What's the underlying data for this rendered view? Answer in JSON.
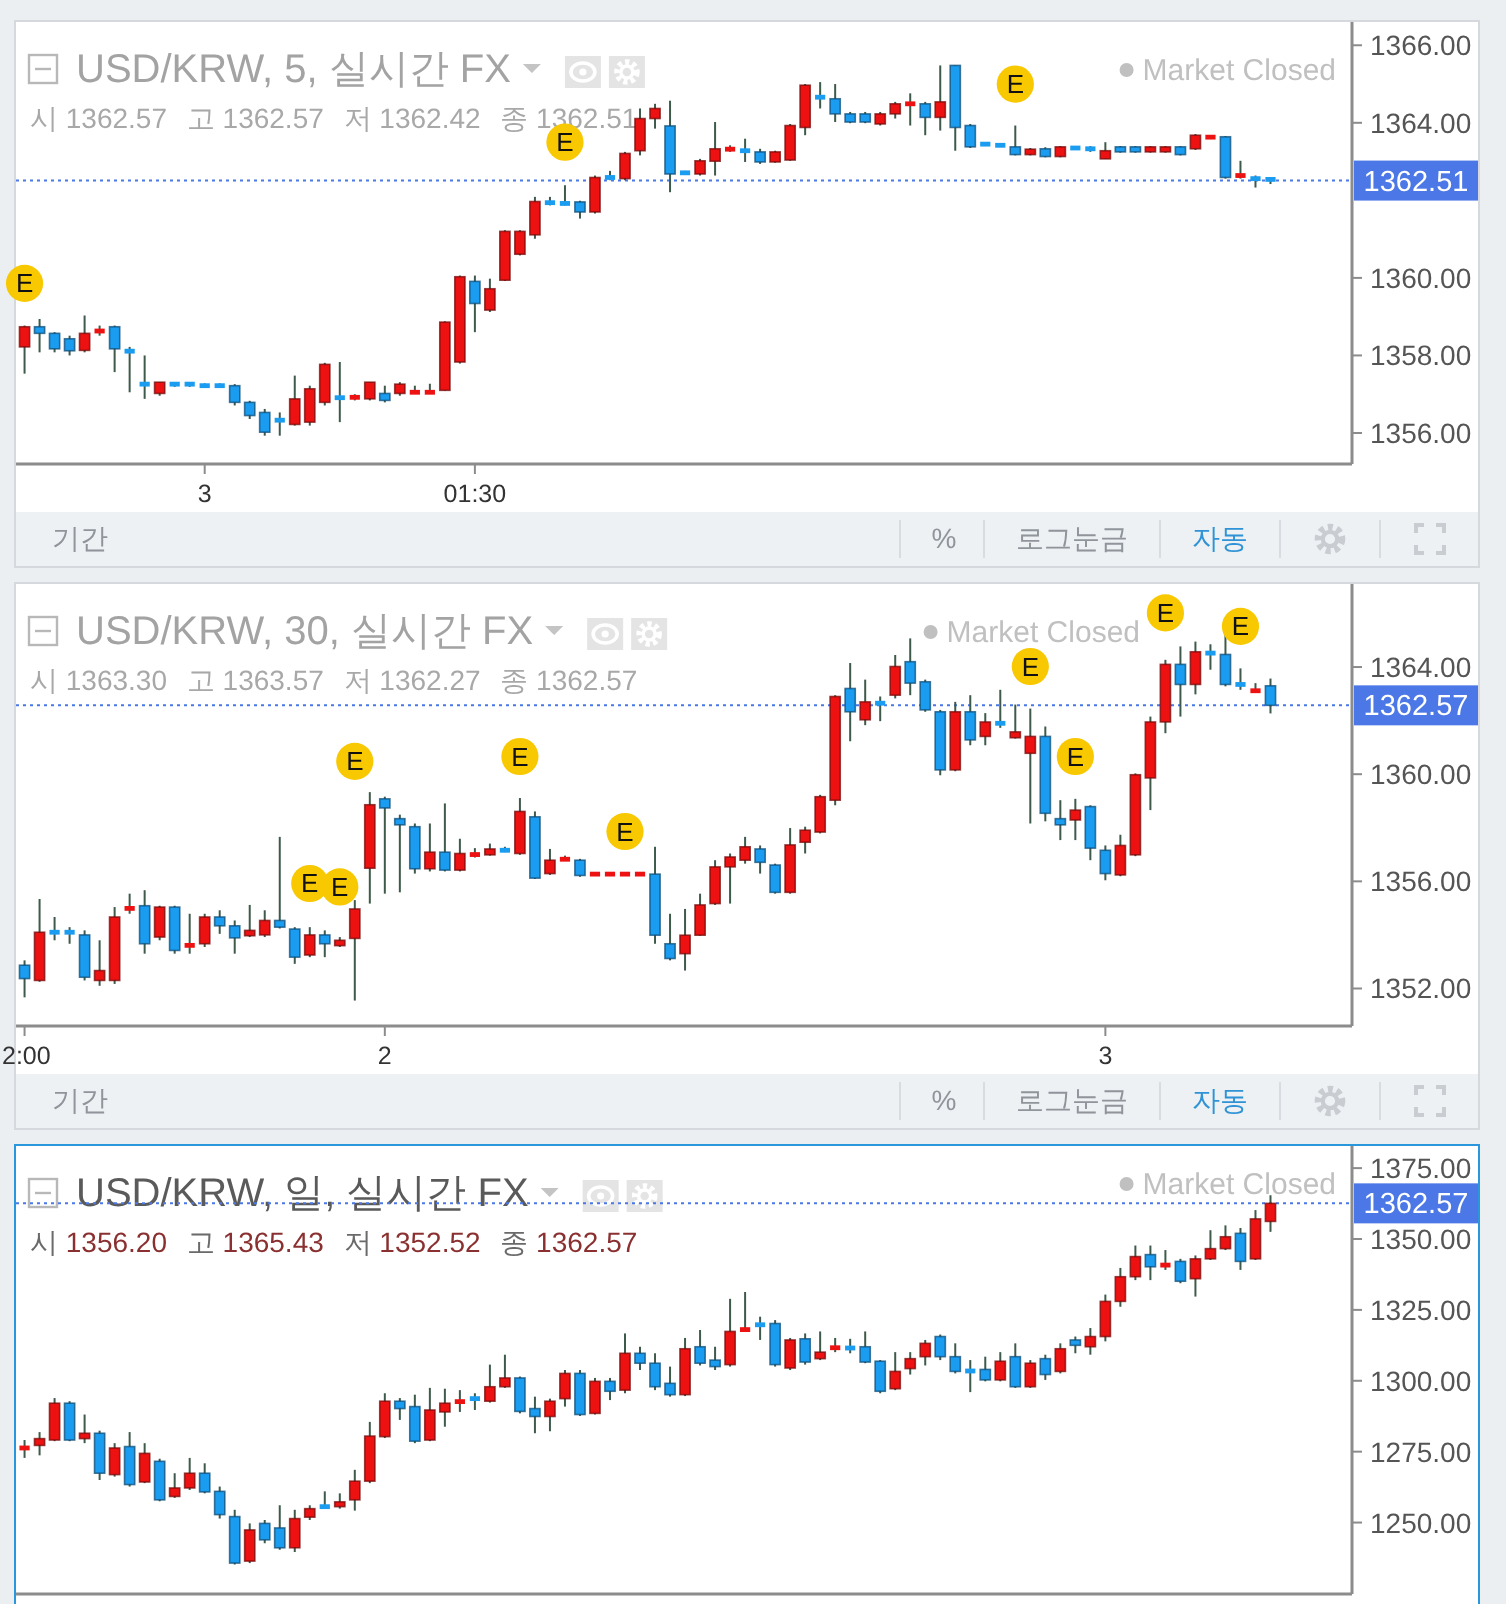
{
  "chart_data": [
    {
      "type": "candlestick",
      "title": "USD/KRW, 5, 실시간 FX",
      "subtitle": "시 1362.57 고 1362.57 저 1362.42 종 1362.51",
      "annotations": [
        "Market Closed",
        "기간",
        "%",
        "로그눈금",
        "자동"
      ],
      "categories": [
        null,
        null,
        null,
        null,
        null,
        null,
        null,
        null,
        null,
        null,
        null,
        null,
        "3",
        null,
        null,
        null,
        null,
        null,
        null,
        null,
        null,
        null,
        null,
        null,
        null,
        null,
        null,
        null,
        null,
        null,
        "01:30",
        null,
        null,
        null,
        null,
        null,
        null,
        null,
        null,
        null,
        null,
        null,
        null,
        null,
        null,
        null,
        null,
        null,
        null,
        null,
        null,
        null,
        null,
        null,
        null,
        null,
        null,
        null,
        null,
        null,
        null,
        null,
        null,
        null,
        null,
        null,
        null,
        null,
        null,
        null,
        null,
        null,
        null,
        null,
        null,
        null,
        null,
        null,
        null,
        null,
        null,
        null,
        null,
        null
      ],
      "ohlc": [
        [
          1358.22,
          1358.77,
          1357.53,
          1358.74
        ],
        [
          1358.74,
          1358.94,
          1358.08,
          1358.57
        ],
        [
          1358.57,
          1358.6,
          1358.08,
          1358.17
        ],
        [
          1358.43,
          1358.51,
          1358.0,
          1358.12
        ],
        [
          1358.13,
          1359.03,
          1358.08,
          1358.57
        ],
        [
          1358.57,
          1358.77,
          1358.51,
          1358.69
        ],
        [
          1358.74,
          1358.77,
          1357.57,
          1358.17
        ],
        [
          1358.17,
          1358.22,
          1357.05,
          1358.05
        ],
        [
          1357.26,
          1358.0,
          1356.88,
          1357.26
        ],
        [
          1357.02,
          1357.31,
          1356.96,
          1357.31
        ],
        [
          1357.26,
          1357.31,
          1357.19,
          1357.26
        ],
        [
          1357.26,
          1357.31,
          1357.19,
          1357.26
        ],
        [
          1357.22,
          1357.28,
          1357.17,
          1357.22
        ],
        [
          1357.22,
          1357.28,
          1357.17,
          1357.22
        ],
        [
          1357.22,
          1357.26,
          1356.71,
          1356.79
        ],
        [
          1356.79,
          1356.83,
          1356.36,
          1356.45
        ],
        [
          1356.53,
          1356.62,
          1355.93,
          1356.02
        ],
        [
          1356.33,
          1356.53,
          1355.93,
          1356.33
        ],
        [
          1356.22,
          1357.48,
          1356.19,
          1356.88
        ],
        [
          1356.28,
          1357.22,
          1356.19,
          1357.14
        ],
        [
          1356.79,
          1357.81,
          1356.71,
          1357.77
        ],
        [
          1356.91,
          1357.83,
          1356.28,
          1356.91
        ],
        [
          1356.88,
          1357.0,
          1356.84,
          1356.96
        ],
        [
          1356.88,
          1357.31,
          1356.84,
          1357.31
        ],
        [
          1357.02,
          1357.22,
          1356.79,
          1356.84
        ],
        [
          1357.02,
          1357.31,
          1356.96,
          1357.26
        ],
        [
          1357.05,
          1357.22,
          1357.02,
          1357.05
        ],
        [
          1357.05,
          1357.27,
          1357.02,
          1357.05
        ],
        [
          1357.1,
          1358.88,
          1357.09,
          1358.86
        ],
        [
          1357.83,
          1360.06,
          1357.79,
          1360.03
        ],
        [
          1359.91,
          1360.06,
          1358.6,
          1359.34
        ],
        [
          1359.17,
          1359.98,
          1359.12,
          1359.72
        ],
        [
          1359.94,
          1361.23,
          1359.92,
          1361.2
        ],
        [
          1360.61,
          1361.23,
          1360.58,
          1361.2
        ],
        [
          1361.11,
          1362.09,
          1361.01,
          1361.97
        ],
        [
          1361.94,
          1362.09,
          1361.87,
          1361.94
        ],
        [
          1361.92,
          1362.39,
          1361.87,
          1361.92
        ],
        [
          1361.96,
          1361.99,
          1361.53,
          1361.7
        ],
        [
          1361.7,
          1362.64,
          1361.66,
          1362.59
        ],
        [
          1362.59,
          1362.76,
          1362.52,
          1362.59
        ],
        [
          1362.56,
          1363.25,
          1362.52,
          1363.21
        ],
        [
          1363.28,
          1364.37,
          1363.16,
          1364.11
        ],
        [
          1364.11,
          1364.49,
          1363.85,
          1364.37
        ],
        [
          1363.92,
          1364.57,
          1362.21,
          1362.68
        ],
        [
          1362.71,
          1362.76,
          1362.68,
          1362.71
        ],
        [
          1362.68,
          1363.07,
          1362.64,
          1363.02
        ],
        [
          1363.01,
          1364.02,
          1362.64,
          1363.33
        ],
        [
          1363.32,
          1363.42,
          1363.25,
          1363.32
        ],
        [
          1363.28,
          1363.59,
          1362.99,
          1363.28
        ],
        [
          1363.25,
          1363.33,
          1362.94,
          1362.99
        ],
        [
          1362.99,
          1363.28,
          1362.97,
          1363.25
        ],
        [
          1363.04,
          1363.97,
          1363.02,
          1363.93
        ],
        [
          1363.88,
          1365.0,
          1363.68,
          1364.97
        ],
        [
          1364.66,
          1365.05,
          1364.37,
          1364.66
        ],
        [
          1364.62,
          1365.0,
          1364.02,
          1364.23
        ],
        [
          1364.23,
          1364.28,
          1363.99,
          1364.02
        ],
        [
          1364.23,
          1364.28,
          1363.99,
          1364.02
        ],
        [
          1363.97,
          1364.28,
          1363.93,
          1364.23
        ],
        [
          1364.23,
          1364.54,
          1364.11,
          1364.49
        ],
        [
          1364.49,
          1364.76,
          1363.93,
          1364.49
        ],
        [
          1364.49,
          1364.54,
          1363.68,
          1364.14
        ],
        [
          1364.14,
          1365.48,
          1363.8,
          1364.54
        ],
        [
          1365.48,
          1365.48,
          1363.28,
          1363.88
        ],
        [
          1363.93,
          1363.97,
          1363.35,
          1363.38
        ],
        [
          1363.45,
          1363.5,
          1363.4,
          1363.45
        ],
        [
          1363.42,
          1363.47,
          1363.38,
          1363.42
        ],
        [
          1363.38,
          1363.93,
          1363.16,
          1363.18
        ],
        [
          1363.18,
          1363.35,
          1363.16,
          1363.32
        ],
        [
          1363.33,
          1363.37,
          1363.11,
          1363.13
        ],
        [
          1363.13,
          1363.4,
          1363.11,
          1363.38
        ],
        [
          1363.35,
          1363.38,
          1363.32,
          1363.35
        ],
        [
          1363.38,
          1363.4,
          1363.25,
          1363.28
        ],
        [
          1363.07,
          1363.5,
          1363.07,
          1363.28
        ],
        [
          1363.38,
          1363.4,
          1363.23,
          1363.25
        ],
        [
          1363.38,
          1363.4,
          1363.23,
          1363.25
        ],
        [
          1363.25,
          1363.4,
          1363.23,
          1363.38
        ],
        [
          1363.25,
          1363.4,
          1363.23,
          1363.38
        ],
        [
          1363.38,
          1363.4,
          1363.16,
          1363.18
        ],
        [
          1363.33,
          1363.71,
          1363.3,
          1363.68
        ],
        [
          1363.63,
          1363.66,
          1363.6,
          1363.63
        ],
        [
          1363.64,
          1363.66,
          1362.56,
          1362.59
        ],
        [
          1362.64,
          1363.02,
          1362.56,
          1362.64
        ],
        [
          1362.61,
          1362.64,
          1362.33,
          1362.51
        ],
        [
          1362.57,
          1362.57,
          1362.42,
          1362.51
        ]
      ],
      "colors": [
        "#ee1111",
        "#1a9cf0",
        "#1a9cf0",
        "#1a9cf0",
        "#ee1111",
        "#ee1111",
        "#1a9cf0",
        "#1a9cf0",
        "#1a9cf0",
        "#ee1111",
        "#1a9cf0",
        "#1a9cf0",
        "#1a9cf0",
        "#1a9cf0",
        "#1a9cf0",
        "#1a9cf0",
        "#1a9cf0",
        "#1a9cf0",
        "#ee1111",
        "#ee1111",
        "#ee1111",
        "#1a9cf0",
        "#ee1111",
        "#ee1111",
        "#1a9cf0",
        "#ee1111",
        "#ee1111",
        "#ee1111",
        "#ee1111",
        "#ee1111",
        "#1a9cf0",
        "#ee1111",
        "#ee1111",
        "#ee1111",
        "#ee1111",
        "#1a9cf0",
        "#1a9cf0",
        "#1a9cf0",
        "#ee1111",
        "#1a9cf0",
        "#ee1111",
        "#ee1111",
        "#ee1111",
        "#1a9cf0",
        "#1a9cf0",
        "#ee1111",
        "#ee1111",
        "#ee1111",
        "#1a9cf0",
        "#1a9cf0",
        "#ee1111",
        "#ee1111",
        "#ee1111",
        "#1a9cf0",
        "#1a9cf0",
        "#1a9cf0",
        "#1a9cf0",
        "#ee1111",
        "#ee1111",
        "#ee1111",
        "#1a9cf0",
        "#ee1111",
        "#1a9cf0",
        "#1a9cf0",
        "#1a9cf0",
        "#1a9cf0",
        "#1a9cf0",
        "#ee1111",
        "#1a9cf0",
        "#ee1111",
        "#1a9cf0",
        "#1a9cf0",
        "#ee1111",
        "#1a9cf0",
        "#1a9cf0",
        "#ee1111",
        "#ee1111",
        "#1a9cf0",
        "#ee1111",
        "#ee1111",
        "#1a9cf0",
        "#ee1111",
        "#1a9cf0",
        "#1a9cf0"
      ],
      "series": [
        {
          "type": "scatter",
          "name": "E",
          "color": "#f8c800",
          "marker": "circle",
          "values": [
            1359.86,
            null,
            null,
            null,
            null,
            null,
            null,
            null,
            null,
            null,
            null,
            null,
            null,
            null,
            null,
            null,
            null,
            null,
            null,
            null,
            null,
            null,
            null,
            null,
            null,
            null,
            null,
            null,
            null,
            null,
            null,
            null,
            null,
            null,
            null,
            null,
            1363.5,
            null,
            null,
            null,
            null,
            null,
            null,
            null,
            null,
            null,
            null,
            null,
            null,
            null,
            null,
            null,
            null,
            null,
            null,
            null,
            null,
            null,
            null,
            null,
            null,
            null,
            null,
            null,
            null,
            null,
            1365.0,
            null,
            null,
            null,
            null,
            null,
            null,
            null,
            null,
            null,
            null,
            null,
            null,
            null,
            null,
            null,
            null,
            null
          ]
        }
      ],
      "ylim": [
        1355.2,
        1366.6
      ],
      "yticks": [
        {
          "value": 1356,
          "label": "1356.00"
        },
        {
          "value": 1358,
          "label": "1358.00"
        },
        {
          "value": 1360,
          "label": "1360.00"
        },
        {
          "value": 1364,
          "label": "1364.00"
        },
        {
          "value": 1366,
          "label": "1366.00"
        }
      ],
      "ref_lines": [
        {
          "axis": "y",
          "value": 1362.51,
          "label": "1362.51",
          "color": "#4b78e6",
          "line_style": "dotted"
        }
      ]
    },
    {
      "type": "candlestick",
      "title": "USD/KRW, 30, 실시간 FX",
      "subtitle": "시 1363.30 고 1363.57 저 1362.27 종 1362.57",
      "annotations": [
        "Market Closed",
        "기간",
        "%",
        "로그눈금",
        "자동"
      ],
      "categories": [
        "2:00",
        null,
        null,
        null,
        null,
        null,
        null,
        null,
        null,
        null,
        null,
        null,
        null,
        null,
        null,
        null,
        null,
        null,
        null,
        null,
        null,
        null,
        null,
        null,
        "2",
        null,
        null,
        null,
        null,
        null,
        null,
        null,
        null,
        null,
        null,
        null,
        null,
        null,
        null,
        null,
        null,
        null,
        null,
        null,
        null,
        null,
        null,
        null,
        null,
        null,
        null,
        null,
        null,
        null,
        null,
        null,
        null,
        null,
        null,
        null,
        null,
        null,
        null,
        null,
        null,
        null,
        null,
        null,
        null,
        null,
        null,
        null,
        "3",
        null,
        null,
        null,
        null,
        null,
        null,
        null,
        null,
        null,
        null,
        null
      ],
      "ohlc": [
        [
          1352.87,
          1353.05,
          1351.67,
          1352.37
        ],
        [
          1352.3,
          1355.34,
          1352.25,
          1354.1
        ],
        [
          1354.1,
          1354.67,
          1353.8,
          1354.1
        ],
        [
          1354.1,
          1354.29,
          1353.67,
          1354.1
        ],
        [
          1354.0,
          1354.17,
          1352.3,
          1352.42
        ],
        [
          1352.3,
          1353.8,
          1352.1,
          1352.67
        ],
        [
          1352.3,
          1355.04,
          1352.17,
          1354.67
        ],
        [
          1354.94,
          1355.54,
          1354.79,
          1355.04
        ],
        [
          1355.09,
          1355.67,
          1353.3,
          1353.67
        ],
        [
          1353.92,
          1355.09,
          1353.8,
          1355.04
        ],
        [
          1355.04,
          1355.09,
          1353.3,
          1353.42
        ],
        [
          1353.55,
          1354.79,
          1353.3,
          1353.67
        ],
        [
          1353.67,
          1354.79,
          1353.55,
          1354.67
        ],
        [
          1354.67,
          1354.92,
          1354.04,
          1354.34
        ],
        [
          1354.34,
          1354.54,
          1353.3,
          1353.89
        ],
        [
          1353.97,
          1355.12,
          1353.92,
          1354.17
        ],
        [
          1354.0,
          1354.92,
          1353.92,
          1354.54
        ],
        [
          1354.54,
          1357.66,
          1354.24,
          1354.29
        ],
        [
          1354.22,
          1354.29,
          1352.92,
          1353.17
        ],
        [
          1353.25,
          1354.29,
          1353.17,
          1354.0
        ],
        [
          1354.0,
          1354.17,
          1353.17,
          1353.67
        ],
        [
          1353.6,
          1353.92,
          1353.55,
          1353.8
        ],
        [
          1353.87,
          1355.3,
          1351.55,
          1354.97
        ],
        [
          1356.49,
          1359.33,
          1355.17,
          1358.86
        ],
        [
          1359.08,
          1359.16,
          1355.54,
          1358.74
        ],
        [
          1358.34,
          1358.49,
          1355.59,
          1358.11
        ],
        [
          1358.04,
          1358.16,
          1356.29,
          1356.47
        ],
        [
          1356.47,
          1358.16,
          1356.37,
          1357.09
        ],
        [
          1357.09,
          1358.91,
          1356.37,
          1356.42
        ],
        [
          1356.42,
          1357.59,
          1356.37,
          1357.04
        ],
        [
          1356.96,
          1357.24,
          1356.89,
          1357.04
        ],
        [
          1356.99,
          1357.41,
          1356.96,
          1357.21
        ],
        [
          1357.16,
          1357.29,
          1357.09,
          1357.16
        ],
        [
          1357.04,
          1359.11,
          1356.99,
          1358.61
        ],
        [
          1358.41,
          1358.61,
          1356.09,
          1356.12
        ],
        [
          1356.29,
          1357.21,
          1356.24,
          1356.79
        ],
        [
          1356.79,
          1356.96,
          1356.76,
          1356.86
        ],
        [
          1356.79,
          1356.84,
          1356.17,
          1356.22
        ],
        [
          1356.27,
          1356.27,
          1356.27,
          1356.27
        ],
        [
          1356.27,
          1356.27,
          1356.27,
          1356.27
        ],
        [
          1356.27,
          1356.27,
          1356.27,
          1356.27
        ],
        [
          1356.27,
          1356.27,
          1356.27,
          1356.27
        ],
        [
          1356.27,
          1357.29,
          1353.67,
          1353.99
        ],
        [
          1353.67,
          1354.79,
          1353.05,
          1353.12
        ],
        [
          1353.3,
          1354.97,
          1352.67,
          1353.99
        ],
        [
          1353.99,
          1355.54,
          1353.97,
          1355.12
        ],
        [
          1355.17,
          1356.79,
          1355.12,
          1356.54
        ],
        [
          1356.54,
          1357.04,
          1355.17,
          1356.91
        ],
        [
          1356.79,
          1357.66,
          1356.66,
          1357.29
        ],
        [
          1357.21,
          1357.34,
          1356.29,
          1356.71
        ],
        [
          1356.61,
          1356.66,
          1355.54,
          1355.59
        ],
        [
          1355.59,
          1357.99,
          1355.54,
          1357.36
        ],
        [
          1357.46,
          1358.04,
          1357.04,
          1357.91
        ],
        [
          1357.84,
          1359.23,
          1357.79,
          1359.16
        ],
        [
          1359.03,
          1362.95,
          1358.84,
          1362.9
        ],
        [
          1363.2,
          1364.15,
          1361.23,
          1362.33
        ],
        [
          1362.03,
          1363.53,
          1361.83,
          1362.7
        ],
        [
          1362.65,
          1362.9,
          1361.98,
          1362.65
        ],
        [
          1362.95,
          1364.45,
          1362.83,
          1364.02
        ],
        [
          1364.2,
          1365.07,
          1362.95,
          1363.4
        ],
        [
          1363.45,
          1363.53,
          1362.33,
          1362.4
        ],
        [
          1362.33,
          1362.4,
          1359.96,
          1360.16
        ],
        [
          1360.16,
          1362.7,
          1360.11,
          1362.33
        ],
        [
          1362.33,
          1362.95,
          1361.08,
          1361.28
        ],
        [
          1361.41,
          1362.28,
          1361.08,
          1361.95
        ],
        [
          1361.9,
          1363.15,
          1361.73,
          1361.9
        ],
        [
          1361.36,
          1362.6,
          1361.33,
          1361.58
        ],
        [
          1360.78,
          1362.45,
          1358.16,
          1361.41
        ],
        [
          1361.41,
          1361.78,
          1358.24,
          1358.54
        ],
        [
          1358.34,
          1359.03,
          1357.54,
          1358.11
        ],
        [
          1358.29,
          1359.08,
          1357.54,
          1358.66
        ],
        [
          1358.79,
          1358.84,
          1356.79,
          1357.24
        ],
        [
          1357.16,
          1357.34,
          1356.04,
          1356.29
        ],
        [
          1356.24,
          1357.74,
          1356.19,
          1357.34
        ],
        [
          1356.99,
          1360.03,
          1356.94,
          1359.98
        ],
        [
          1359.86,
          1362.15,
          1358.66,
          1361.95
        ],
        [
          1361.95,
          1364.27,
          1361.53,
          1364.1
        ],
        [
          1364.1,
          1364.77,
          1362.15,
          1363.35
        ],
        [
          1363.35,
          1364.95,
          1362.98,
          1364.57
        ],
        [
          1364.52,
          1364.85,
          1363.9,
          1364.52
        ],
        [
          1364.47,
          1365.27,
          1363.28,
          1363.35
        ],
        [
          1363.35,
          1363.95,
          1363.15,
          1363.35
        ],
        [
          1363.08,
          1363.4,
          1363.03,
          1363.15
        ],
        [
          1363.3,
          1363.57,
          1362.27,
          1362.57
        ]
      ],
      "colors": [
        "#1a9cf0",
        "#ee1111",
        "#1a9cf0",
        "#1a9cf0",
        "#1a9cf0",
        "#ee1111",
        "#ee1111",
        "#ee1111",
        "#1a9cf0",
        "#ee1111",
        "#1a9cf0",
        "#ee1111",
        "#ee1111",
        "#1a9cf0",
        "#1a9cf0",
        "#ee1111",
        "#ee1111",
        "#1a9cf0",
        "#1a9cf0",
        "#ee1111",
        "#1a9cf0",
        "#ee1111",
        "#ee1111",
        "#ee1111",
        "#1a9cf0",
        "#1a9cf0",
        "#1a9cf0",
        "#ee1111",
        "#1a9cf0",
        "#ee1111",
        "#ee1111",
        "#ee1111",
        "#1a9cf0",
        "#ee1111",
        "#1a9cf0",
        "#ee1111",
        "#ee1111",
        "#1a9cf0",
        "#ee1111",
        "#ee1111",
        "#ee1111",
        "#ee1111",
        "#1a9cf0",
        "#1a9cf0",
        "#ee1111",
        "#ee1111",
        "#ee1111",
        "#ee1111",
        "#ee1111",
        "#1a9cf0",
        "#1a9cf0",
        "#ee1111",
        "#ee1111",
        "#ee1111",
        "#ee1111",
        "#1a9cf0",
        "#ee1111",
        "#1a9cf0",
        "#ee1111",
        "#1a9cf0",
        "#1a9cf0",
        "#1a9cf0",
        "#ee1111",
        "#1a9cf0",
        "#ee1111",
        "#1a9cf0",
        "#ee1111",
        "#ee1111",
        "#1a9cf0",
        "#1a9cf0",
        "#ee1111",
        "#1a9cf0",
        "#1a9cf0",
        "#ee1111",
        "#ee1111",
        "#ee1111",
        "#ee1111",
        "#1a9cf0",
        "#ee1111",
        "#1a9cf0",
        "#1a9cf0",
        "#1a9cf0",
        "#ee1111",
        "#1a9cf0"
      ],
      "series": [
        {
          "type": "scatter",
          "name": "E",
          "color": "#f8c800",
          "marker": "circle",
          "values": [
            null,
            null,
            null,
            null,
            null,
            null,
            null,
            null,
            null,
            null,
            null,
            null,
            null,
            null,
            null,
            null,
            null,
            null,
            null,
            1355.92,
            null,
            1355.79,
            1360.48,
            null,
            null,
            null,
            null,
            null,
            null,
            null,
            null,
            null,
            null,
            1360.66,
            null,
            null,
            null,
            null,
            null,
            null,
            1357.86,
            null,
            null,
            null,
            null,
            null,
            null,
            null,
            null,
            null,
            null,
            null,
            null,
            null,
            null,
            null,
            null,
            null,
            null,
            null,
            null,
            null,
            null,
            null,
            null,
            null,
            null,
            1364.02,
            null,
            null,
            1360.66,
            null,
            null,
            null,
            null,
            null,
            1366.02,
            null,
            null,
            null,
            null,
            1365.52,
            null,
            null
          ]
        }
      ],
      "ylim": [
        1350.6,
        1367.1
      ],
      "yticks": [
        {
          "value": 1352,
          "label": "1352.00"
        },
        {
          "value": 1356,
          "label": "1356.00"
        },
        {
          "value": 1360,
          "label": "1360.00"
        },
        {
          "value": 1364,
          "label": "1364.00"
        }
      ],
      "ref_lines": [
        {
          "axis": "y",
          "value": 1362.57,
          "label": "1362.57",
          "color": "#4b78e6",
          "line_style": "dotted"
        }
      ]
    },
    {
      "type": "candlestick",
      "title": "USD/KRW, 일, 실시간 FX",
      "subtitle": "시 1356.20 고 1365.43 저 1352.52 종 1362.57",
      "annotations": [
        "Market Closed"
      ],
      "categories": [
        null,
        null,
        null,
        null,
        null,
        null,
        null,
        null,
        null,
        null,
        null,
        null,
        null,
        null,
        null,
        null,
        null,
        null,
        null,
        null,
        null,
        null,
        null,
        null,
        null,
        null,
        null,
        null,
        null,
        null,
        null,
        null,
        null,
        null,
        null,
        null,
        null,
        null,
        null,
        null,
        null,
        null,
        null,
        null,
        null,
        null,
        null,
        null,
        null,
        null,
        null,
        null,
        null,
        null,
        null,
        null,
        null,
        null,
        null,
        null,
        null,
        null,
        null,
        null,
        null,
        null,
        null,
        null,
        null,
        null,
        null,
        null,
        null,
        null,
        null,
        null,
        null,
        null,
        null,
        null,
        null,
        null,
        null,
        null
      ],
      "tick_labels": "y",
      "ohlc": [
        [
          1275.8,
          1279.1,
          1272.8,
          1276.8
        ],
        [
          1277.2,
          1281.9,
          1273.7,
          1279.6
        ],
        [
          1279.1,
          1293.9,
          1278.7,
          1292.1
        ],
        [
          1292.1,
          1292.8,
          1278.7,
          1279.1
        ],
        [
          1279.6,
          1288.1,
          1278.0,
          1281.5
        ],
        [
          1281.5,
          1282.4,
          1265.0,
          1267.4
        ],
        [
          1266.9,
          1278.0,
          1266.2,
          1276.3
        ],
        [
          1276.8,
          1281.9,
          1262.7,
          1263.4
        ],
        [
          1264.3,
          1278.0,
          1263.9,
          1274.4
        ],
        [
          1271.6,
          1272.5,
          1257.5,
          1258.0
        ],
        [
          1259.2,
          1267.4,
          1258.7,
          1262.2
        ],
        [
          1262.2,
          1272.8,
          1261.5,
          1267.4
        ],
        [
          1267.4,
          1270.9,
          1260.3,
          1260.8
        ],
        [
          1261.0,
          1262.7,
          1251.4,
          1252.8
        ],
        [
          1252.1,
          1254.5,
          1235.2,
          1235.7
        ],
        [
          1236.4,
          1249.7,
          1235.7,
          1247.4
        ],
        [
          1249.7,
          1250.9,
          1242.7,
          1243.9
        ],
        [
          1248.1,
          1256.1,
          1240.4,
          1241.1
        ],
        [
          1241.1,
          1254.5,
          1239.6,
          1251.4
        ],
        [
          1251.9,
          1256.1,
          1250.9,
          1254.9
        ],
        [
          1255.6,
          1261.0,
          1254.9,
          1255.6
        ],
        [
          1255.6,
          1260.3,
          1254.9,
          1257.3
        ],
        [
          1258.0,
          1268.6,
          1254.2,
          1264.6
        ],
        [
          1264.6,
          1285.5,
          1263.9,
          1280.5
        ],
        [
          1280.3,
          1295.6,
          1279.8,
          1292.8
        ],
        [
          1292.8,
          1293.9,
          1286.2,
          1290.2
        ],
        [
          1290.9,
          1295.1,
          1278.0,
          1278.7
        ],
        [
          1279.1,
          1297.5,
          1278.7,
          1289.7
        ],
        [
          1289.0,
          1297.2,
          1283.8,
          1292.1
        ],
        [
          1292.1,
          1296.7,
          1289.0,
          1293.2
        ],
        [
          1293.7,
          1295.6,
          1289.7,
          1293.7
        ],
        [
          1292.8,
          1305.7,
          1292.3,
          1297.9
        ],
        [
          1297.9,
          1309.2,
          1297.5,
          1301.0
        ],
        [
          1301.0,
          1301.5,
          1288.5,
          1289.2
        ],
        [
          1290.2,
          1294.4,
          1281.5,
          1287.4
        ],
        [
          1287.4,
          1293.7,
          1282.2,
          1292.8
        ],
        [
          1293.7,
          1303.8,
          1290.9,
          1302.6
        ],
        [
          1302.6,
          1303.8,
          1287.6,
          1288.1
        ],
        [
          1288.5,
          1301.0,
          1288.1,
          1299.8
        ],
        [
          1299.8,
          1301.0,
          1293.2,
          1296.3
        ],
        [
          1296.7,
          1316.7,
          1295.6,
          1309.7
        ],
        [
          1309.7,
          1312.0,
          1303.8,
          1306.2
        ],
        [
          1306.2,
          1309.7,
          1296.7,
          1297.9
        ],
        [
          1299.1,
          1305.0,
          1294.4,
          1295.1
        ],
        [
          1295.1,
          1315.1,
          1294.6,
          1311.3
        ],
        [
          1312.0,
          1317.9,
          1305.4,
          1306.2
        ],
        [
          1307.3,
          1312.0,
          1303.8,
          1305.0
        ],
        [
          1305.7,
          1328.9,
          1305.0,
          1317.4
        ],
        [
          1317.7,
          1331.3,
          1317.2,
          1318.4
        ],
        [
          1320.2,
          1322.6,
          1314.4,
          1319.3
        ],
        [
          1320.2,
          1321.4,
          1305.0,
          1305.7
        ],
        [
          1304.5,
          1315.1,
          1303.8,
          1314.4
        ],
        [
          1314.8,
          1316.7,
          1305.7,
          1306.6
        ],
        [
          1307.8,
          1317.4,
          1307.3,
          1310.1
        ],
        [
          1311.3,
          1315.1,
          1310.1,
          1312.0
        ],
        [
          1311.8,
          1314.8,
          1309.7,
          1311.3
        ],
        [
          1312.0,
          1317.4,
          1306.2,
          1306.6
        ],
        [
          1306.9,
          1307.3,
          1295.6,
          1296.3
        ],
        [
          1297.2,
          1310.1,
          1296.7,
          1303.3
        ],
        [
          1304.3,
          1310.1,
          1302.2,
          1307.8
        ],
        [
          1308.5,
          1314.4,
          1305.4,
          1313.2
        ],
        [
          1315.6,
          1316.3,
          1307.3,
          1308.5
        ],
        [
          1308.5,
          1313.2,
          1302.6,
          1303.3
        ],
        [
          1303.8,
          1307.3,
          1296.0,
          1303.1
        ],
        [
          1304.0,
          1308.5,
          1299.8,
          1300.3
        ],
        [
          1300.3,
          1310.1,
          1299.8,
          1306.9
        ],
        [
          1308.5,
          1313.2,
          1297.5,
          1297.9
        ],
        [
          1297.9,
          1307.3,
          1297.5,
          1306.2
        ],
        [
          1307.8,
          1309.2,
          1300.3,
          1302.2
        ],
        [
          1303.3,
          1313.2,
          1302.6,
          1311.3
        ],
        [
          1314.4,
          1315.6,
          1309.7,
          1312.5
        ],
        [
          1312.0,
          1318.6,
          1309.2,
          1315.6
        ],
        [
          1315.6,
          1330.4,
          1313.9,
          1328.0
        ],
        [
          1328.0,
          1339.8,
          1326.1,
          1336.7
        ],
        [
          1336.7,
          1347.7,
          1335.5,
          1343.8
        ],
        [
          1344.5,
          1347.7,
          1335.5,
          1340.2
        ],
        [
          1340.2,
          1346.1,
          1339.1,
          1341.4
        ],
        [
          1342.1,
          1343.0,
          1334.4,
          1335.1
        ],
        [
          1336.0,
          1344.2,
          1329.7,
          1343.0
        ],
        [
          1343.0,
          1353.1,
          1342.6,
          1346.6
        ],
        [
          1346.6,
          1354.8,
          1346.1,
          1350.8
        ],
        [
          1352.0,
          1353.9,
          1339.1,
          1342.1
        ],
        [
          1343.0,
          1360.2,
          1342.6,
          1357.1
        ],
        [
          1356.2,
          1365.43,
          1352.52,
          1362.57
        ]
      ],
      "colors": [
        "#ee1111",
        "#ee1111",
        "#ee1111",
        "#1a9cf0",
        "#ee1111",
        "#1a9cf0",
        "#ee1111",
        "#1a9cf0",
        "#ee1111",
        "#1a9cf0",
        "#ee1111",
        "#ee1111",
        "#1a9cf0",
        "#1a9cf0",
        "#1a9cf0",
        "#ee1111",
        "#1a9cf0",
        "#1a9cf0",
        "#ee1111",
        "#ee1111",
        "#1a9cf0",
        "#ee1111",
        "#ee1111",
        "#ee1111",
        "#ee1111",
        "#1a9cf0",
        "#1a9cf0",
        "#ee1111",
        "#ee1111",
        "#ee1111",
        "#1a9cf0",
        "#ee1111",
        "#ee1111",
        "#1a9cf0",
        "#1a9cf0",
        "#ee1111",
        "#ee1111",
        "#1a9cf0",
        "#ee1111",
        "#1a9cf0",
        "#ee1111",
        "#1a9cf0",
        "#1a9cf0",
        "#1a9cf0",
        "#ee1111",
        "#1a9cf0",
        "#1a9cf0",
        "#ee1111",
        "#ee1111",
        "#1a9cf0",
        "#1a9cf0",
        "#ee1111",
        "#1a9cf0",
        "#ee1111",
        "#ee1111",
        "#1a9cf0",
        "#1a9cf0",
        "#1a9cf0",
        "#ee1111",
        "#ee1111",
        "#ee1111",
        "#1a9cf0",
        "#1a9cf0",
        "#1a9cf0",
        "#1a9cf0",
        "#ee1111",
        "#1a9cf0",
        "#ee1111",
        "#1a9cf0",
        "#ee1111",
        "#1a9cf0",
        "#ee1111",
        "#ee1111",
        "#ee1111",
        "#ee1111",
        "#1a9cf0",
        "#ee1111",
        "#1a9cf0",
        "#ee1111",
        "#ee1111",
        "#ee1111",
        "#1a9cf0",
        "#ee1111",
        "#ee1111"
      ],
      "ylim": [
        1224.8,
        1382.8
      ],
      "yticks": [
        {
          "value": 1250,
          "label": "1250.00"
        },
        {
          "value": 1275,
          "label": "1275.00"
        },
        {
          "value": 1300,
          "label": "1300.00"
        },
        {
          "value": 1325,
          "label": "1325.00"
        },
        {
          "value": 1350,
          "label": "1350.00"
        },
        {
          "value": 1375,
          "label": "1375.00"
        }
      ],
      "ref_lines": [
        {
          "axis": "y",
          "value": 1362.57,
          "label": "1362.57",
          "color": "#4b78e6",
          "line_style": "dotted"
        }
      ]
    }
  ]
}
